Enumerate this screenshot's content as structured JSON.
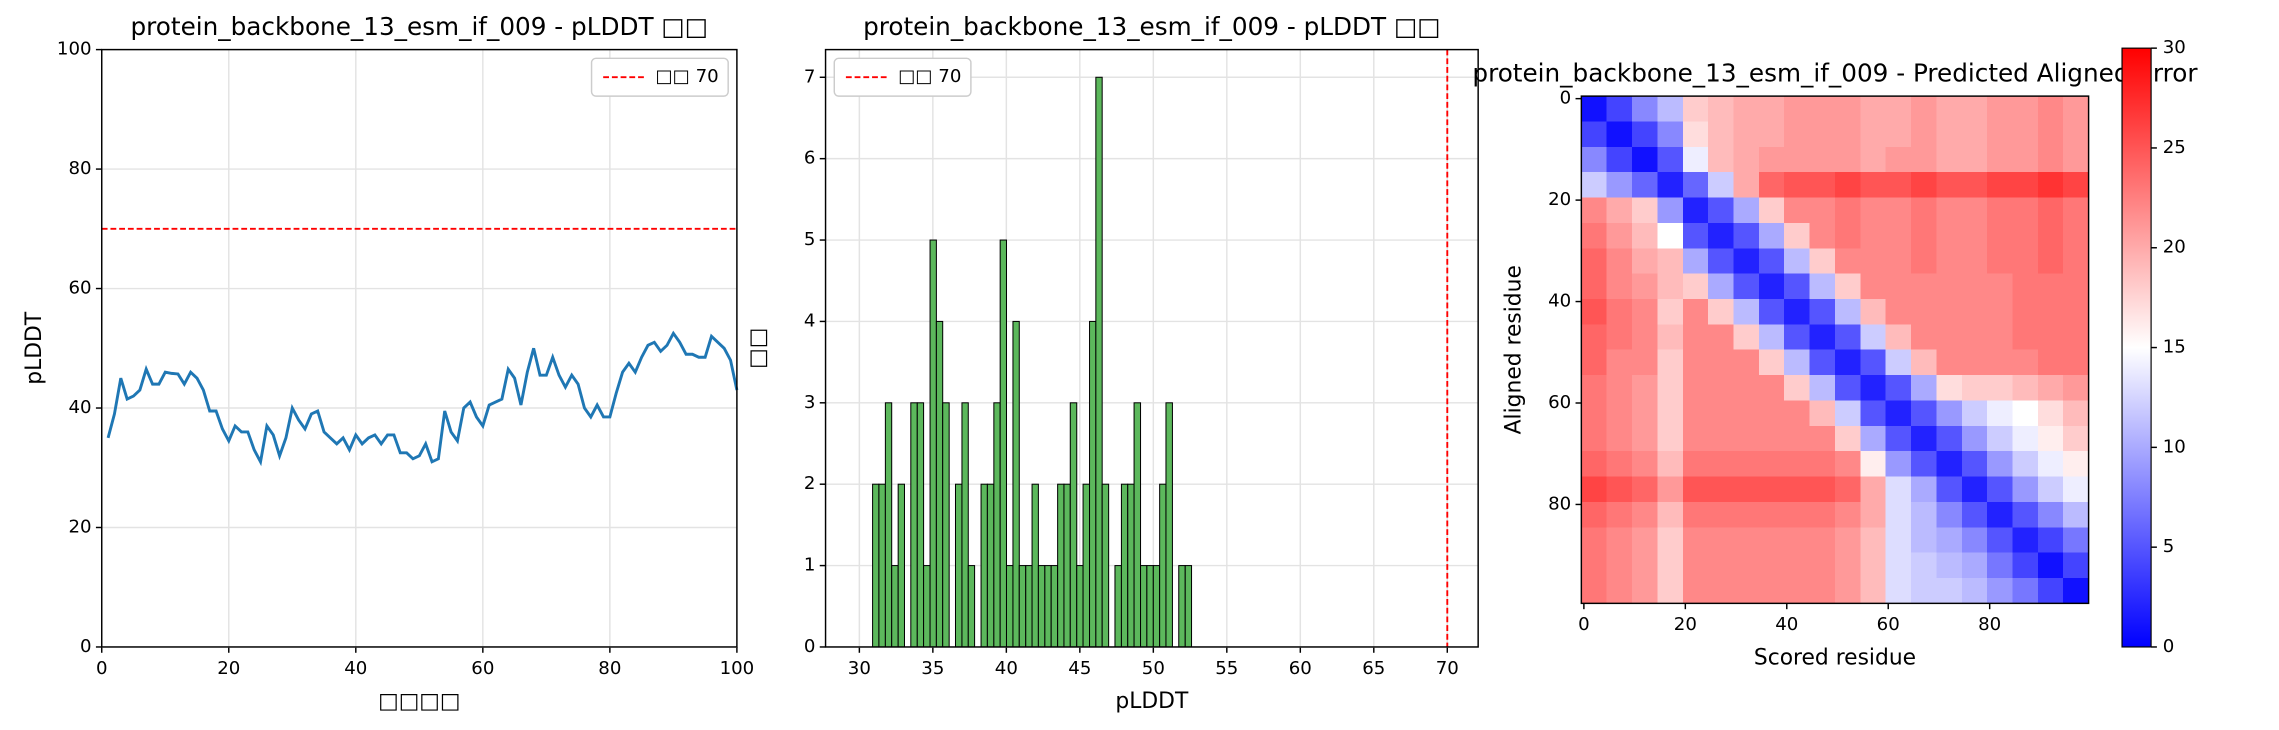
{
  "chart_data": [
    {
      "type": "line",
      "title": "protein_backbone_13_esm_if_009 - pLDDT □□",
      "xlabel": "□□□□",
      "ylabel": "pLDDT",
      "x": [
        1,
        2,
        3,
        4,
        5,
        6,
        7,
        8,
        9,
        10,
        11,
        12,
        13,
        14,
        15,
        16,
        17,
        18,
        19,
        20,
        21,
        22,
        23,
        24,
        25,
        26,
        27,
        28,
        29,
        30,
        31,
        32,
        33,
        34,
        35,
        36,
        37,
        38,
        39,
        40,
        41,
        42,
        43,
        44,
        45,
        46,
        47,
        48,
        49,
        50,
        51,
        52,
        53,
        54,
        55,
        56,
        57,
        58,
        59,
        60,
        61,
        62,
        63,
        64,
        65,
        66,
        67,
        68,
        69,
        70,
        71,
        72,
        73,
        74,
        75,
        76,
        77,
        78,
        79,
        80,
        81,
        82,
        83,
        84,
        85,
        86,
        87,
        88,
        89,
        90,
        91,
        92,
        93,
        94,
        95,
        96,
        97,
        98,
        99,
        100
      ],
      "values": [
        35,
        39,
        45,
        41.5,
        42,
        43,
        46.5,
        44,
        44,
        46,
        45.8,
        45.7,
        44,
        46,
        45,
        43,
        39.5,
        39.5,
        36.5,
        34.5,
        37,
        36,
        36,
        33,
        31,
        37,
        35.5,
        32,
        35,
        40,
        38,
        36.5,
        39,
        39.5,
        36,
        35,
        34,
        35,
        33,
        35.5,
        34,
        35,
        35.5,
        34,
        35.5,
        35.5,
        32.5,
        32.5,
        31.5,
        32,
        34,
        31,
        31.5,
        39.5,
        36,
        34.5,
        40,
        41,
        38.5,
        37,
        40.5,
        41,
        41.5,
        46.5,
        45,
        40.5,
        46,
        50,
        45.5,
        45.5,
        48.5,
        45.5,
        43.5,
        45.5,
        44,
        40,
        38.5,
        40.5,
        38.5,
        38.5,
        42.5,
        46,
        47.5,
        46,
        48.5,
        50.5,
        51,
        49.5,
        50.5,
        52.5,
        51,
        49,
        49,
        48.5,
        48.5,
        52,
        51,
        50,
        48,
        43
      ],
      "color": "#1f77b4",
      "threshold": {
        "label": "□□ 70",
        "value": 70,
        "color": "#ff0000"
      },
      "xlim": [
        0,
        100
      ],
      "ylim": [
        0,
        100
      ],
      "xticks": [
        0,
        20,
        40,
        60,
        80,
        100
      ],
      "yticks": [
        0,
        20,
        40,
        60,
        80,
        100
      ],
      "grid": true,
      "legend": "upper right"
    },
    {
      "type": "histogram",
      "title": "protein_backbone_13_esm_if_009 - pLDDT □□",
      "xlabel": "pLDDT",
      "ylabel": "□□",
      "bins": [
        30.9,
        31.33,
        31.77,
        32.2,
        32.64,
        33.07,
        33.5,
        33.94,
        34.37,
        34.81,
        35.24,
        35.67,
        36.11,
        36.54,
        36.98,
        37.41,
        37.84,
        38.28,
        38.71,
        39.15,
        39.58,
        40.01,
        40.45,
        40.88,
        41.32,
        41.75,
        42.18,
        42.62,
        43.05,
        43.49,
        43.92,
        44.35,
        44.79,
        45.22,
        45.66,
        46.09,
        46.52,
        46.96,
        47.39,
        47.83,
        48.26,
        48.69,
        49.13,
        49.56,
        50.0,
        50.43,
        50.86,
        51.3,
        51.73,
        52.17,
        52.6
      ],
      "counts": [
        2,
        2,
        3,
        1,
        2,
        0,
        3,
        3,
        1,
        5,
        4,
        3,
        0,
        2,
        3,
        1,
        0,
        2,
        2,
        3,
        5,
        1,
        4,
        1,
        1,
        2,
        1,
        1,
        1,
        2,
        2,
        3,
        1,
        2,
        4,
        7,
        2,
        0,
        1,
        2,
        2,
        3,
        1,
        1,
        1,
        2,
        3,
        0,
        1,
        1
      ],
      "color": "#5cb85c",
      "threshold": {
        "label": "□□ 70",
        "value": 70,
        "color": "#ff0000"
      },
      "xlim": [
        27.7,
        72.1
      ],
      "ylim": [
        0,
        7.34
      ],
      "xticks": [
        30,
        35,
        40,
        45,
        50,
        55,
        60,
        65,
        70
      ],
      "yticks": [
        0,
        1,
        2,
        3,
        4,
        5,
        6,
        7
      ],
      "grid": true,
      "legend": "upper left"
    },
    {
      "type": "heatmap",
      "title": "protein_backbone_13_esm_if_009 - Predicted Aligned Error",
      "xlabel": "Scored residue",
      "ylabel": "Aligned residue",
      "z": [
        [
          1,
          4,
          8,
          11,
          18,
          19,
          20,
          20,
          21,
          21,
          21,
          20,
          20,
          21,
          20,
          20,
          21,
          21,
          22,
          21
        ],
        [
          4,
          1,
          4,
          8,
          17,
          19,
          20,
          20,
          21,
          21,
          21,
          20,
          20,
          21,
          20,
          20,
          21,
          21,
          22,
          21
        ],
        [
          8,
          4,
          1,
          5,
          14,
          19,
          20,
          21,
          21,
          21,
          21,
          20,
          21,
          21,
          20,
          20,
          21,
          21,
          22,
          21
        ],
        [
          12,
          9,
          6,
          2,
          6,
          12,
          20,
          24,
          25,
          25,
          26,
          25,
          25,
          26,
          25,
          25,
          26,
          26,
          27,
          26
        ],
        [
          22,
          20,
          18,
          9,
          2,
          5,
          10,
          18,
          22,
          22,
          23,
          22,
          22,
          23,
          22,
          22,
          23,
          23,
          24,
          23
        ],
        [
          23,
          21,
          19,
          15,
          5,
          2,
          5,
          10,
          18,
          22,
          23,
          22,
          22,
          23,
          22,
          22,
          23,
          23,
          24,
          23
        ],
        [
          24,
          22,
          20,
          19,
          10,
          5,
          2,
          5,
          11,
          18,
          22,
          22,
          22,
          23,
          22,
          22,
          23,
          23,
          24,
          23
        ],
        [
          24,
          22,
          21,
          19,
          18,
          10,
          5,
          2,
          5,
          11,
          18,
          22,
          22,
          22,
          22,
          22,
          22,
          23,
          23,
          23
        ],
        [
          25,
          23,
          22,
          18,
          22,
          18,
          11,
          5,
          2,
          5,
          11,
          19,
          22,
          22,
          22,
          22,
          22,
          23,
          23,
          23
        ],
        [
          24,
          23,
          22,
          19,
          22,
          22,
          18,
          11,
          5,
          2,
          5,
          12,
          19,
          22,
          22,
          22,
          22,
          23,
          23,
          23
        ],
        [
          24,
          22,
          22,
          18,
          22,
          22,
          22,
          18,
          11,
          5,
          2,
          5,
          12,
          19,
          22,
          22,
          22,
          22,
          23,
          23
        ],
        [
          23,
          22,
          21,
          18,
          22,
          22,
          22,
          22,
          18,
          11,
          5,
          2,
          5,
          10,
          17,
          18,
          18,
          19,
          20,
          21
        ],
        [
          23,
          22,
          21,
          18,
          22,
          22,
          22,
          22,
          22,
          19,
          12,
          5,
          2,
          5,
          9,
          12,
          14,
          15,
          17,
          19
        ],
        [
          23,
          22,
          21,
          18,
          22,
          22,
          22,
          22,
          22,
          22,
          18,
          10,
          5,
          2,
          5,
          9,
          12,
          14,
          16,
          18
        ],
        [
          24,
          23,
          22,
          19,
          23,
          23,
          23,
          23,
          23,
          23,
          22,
          16,
          9,
          5,
          2,
          5,
          9,
          12,
          14,
          16
        ],
        [
          26,
          25,
          24,
          21,
          25,
          25,
          25,
          25,
          25,
          25,
          24,
          20,
          13,
          10,
          5,
          2,
          5,
          9,
          12,
          14
        ],
        [
          24,
          23,
          22,
          19,
          23,
          23,
          23,
          23,
          23,
          23,
          22,
          20,
          13,
          11,
          8,
          5,
          2,
          5,
          8,
          11
        ],
        [
          23,
          22,
          21,
          18,
          22,
          22,
          22,
          22,
          22,
          22,
          21,
          19,
          13,
          11,
          10,
          8,
          5,
          2,
          4,
          7
        ],
        [
          23,
          22,
          21,
          18,
          22,
          22,
          22,
          22,
          22,
          22,
          21,
          19,
          13,
          12,
          11,
          10,
          7,
          4,
          1,
          4
        ],
        [
          23,
          22,
          21,
          18,
          22,
          22,
          22,
          22,
          22,
          22,
          21,
          19,
          13,
          12,
          12,
          11,
          9,
          7,
          4,
          1
        ]
      ],
      "colormap": [
        "#0000ff",
        "#ffffff",
        "#ff0000"
      ],
      "zlim": [
        0,
        30
      ],
      "zticks": [
        0,
        5,
        10,
        15,
        20,
        25,
        30
      ],
      "xlim": [
        -0.5,
        99.5
      ],
      "ylim": [
        99.5,
        -0.5
      ],
      "xticks": [
        0,
        20,
        40,
        60,
        80
      ],
      "yticks": [
        0,
        20,
        40,
        60,
        80
      ]
    }
  ]
}
